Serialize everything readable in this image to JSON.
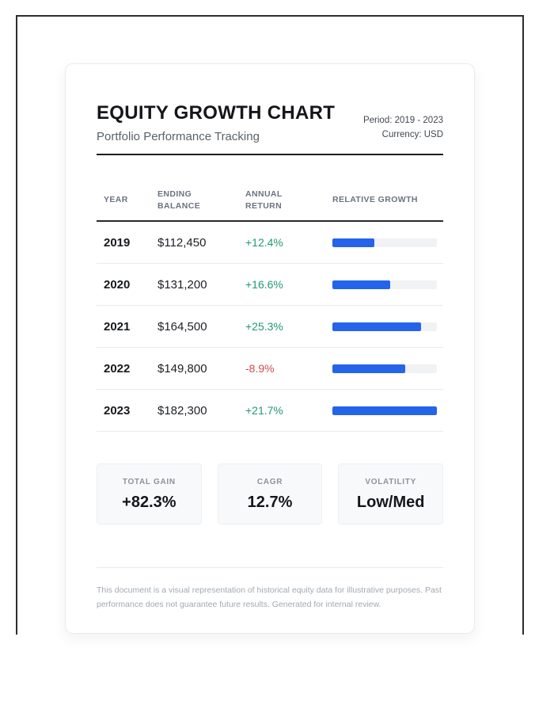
{
  "header": {
    "title": "EQUITY GROWTH CHART",
    "subtitle": "Portfolio Performance Tracking",
    "meta": {
      "period": "Period: 2019 - 2023",
      "currency": "Currency: USD"
    }
  },
  "table": {
    "columns": [
      "YEAR",
      "ENDING BALANCE",
      "ANNUAL RETURN",
      "RELATIVE GROWTH"
    ],
    "rows": [
      {
        "year": "2019",
        "balance": "$112,450",
        "return": "+12.4%",
        "return_type": "positive",
        "bar_pct": 40
      },
      {
        "year": "2020",
        "balance": "$131,200",
        "return": "+16.6%",
        "return_type": "positive",
        "bar_pct": 55
      },
      {
        "year": "2021",
        "balance": "$164,500",
        "return": "+25.3%",
        "return_type": "positive",
        "bar_pct": 85
      },
      {
        "year": "2022",
        "balance": "$149,800",
        "return": "-8.9%",
        "return_type": "negative",
        "bar_pct": 70
      },
      {
        "year": "2023",
        "balance": "$182,300",
        "return": "+21.7%",
        "return_type": "positive",
        "bar_pct": 100
      }
    ]
  },
  "stats": [
    {
      "label": "TOTAL GAIN",
      "value": "+82.3%"
    },
    {
      "label": "CAGR",
      "value": "12.7%"
    },
    {
      "label": "VOLATILITY",
      "value": "Low/Med"
    }
  ],
  "footer": {
    "disclaimer": "This document is a visual representation of historical equity data for illustrative purposes. Past performance does not guarantee future results. Generated for internal review."
  },
  "colors": {
    "accent_blue": "#2563eb",
    "positive_green": "#229a70",
    "negative_red": "#d04a50",
    "bar_track_gray": "#f0f2f4",
    "frame_border": "#2d2d2d"
  },
  "chart_data": {
    "type": "bar",
    "title": "Relative Growth by Year",
    "categories": [
      "2019",
      "2020",
      "2021",
      "2022",
      "2023"
    ],
    "series": [
      {
        "name": "Ending Balance (USD)",
        "values": [
          112450,
          131200,
          164500,
          149800,
          182300
        ]
      },
      {
        "name": "Annual Return (%)",
        "values": [
          12.4,
          16.6,
          25.3,
          -8.9,
          21.7
        ]
      },
      {
        "name": "Relative Growth (bar fill % of track)",
        "values": [
          40,
          55,
          85,
          70,
          100
        ]
      }
    ],
    "xlabel": "Year",
    "ylabel": "Relative Growth",
    "legend_position": "none",
    "grid": false,
    "orientation": "horizontal",
    "bar_color": "#2563eb"
  }
}
